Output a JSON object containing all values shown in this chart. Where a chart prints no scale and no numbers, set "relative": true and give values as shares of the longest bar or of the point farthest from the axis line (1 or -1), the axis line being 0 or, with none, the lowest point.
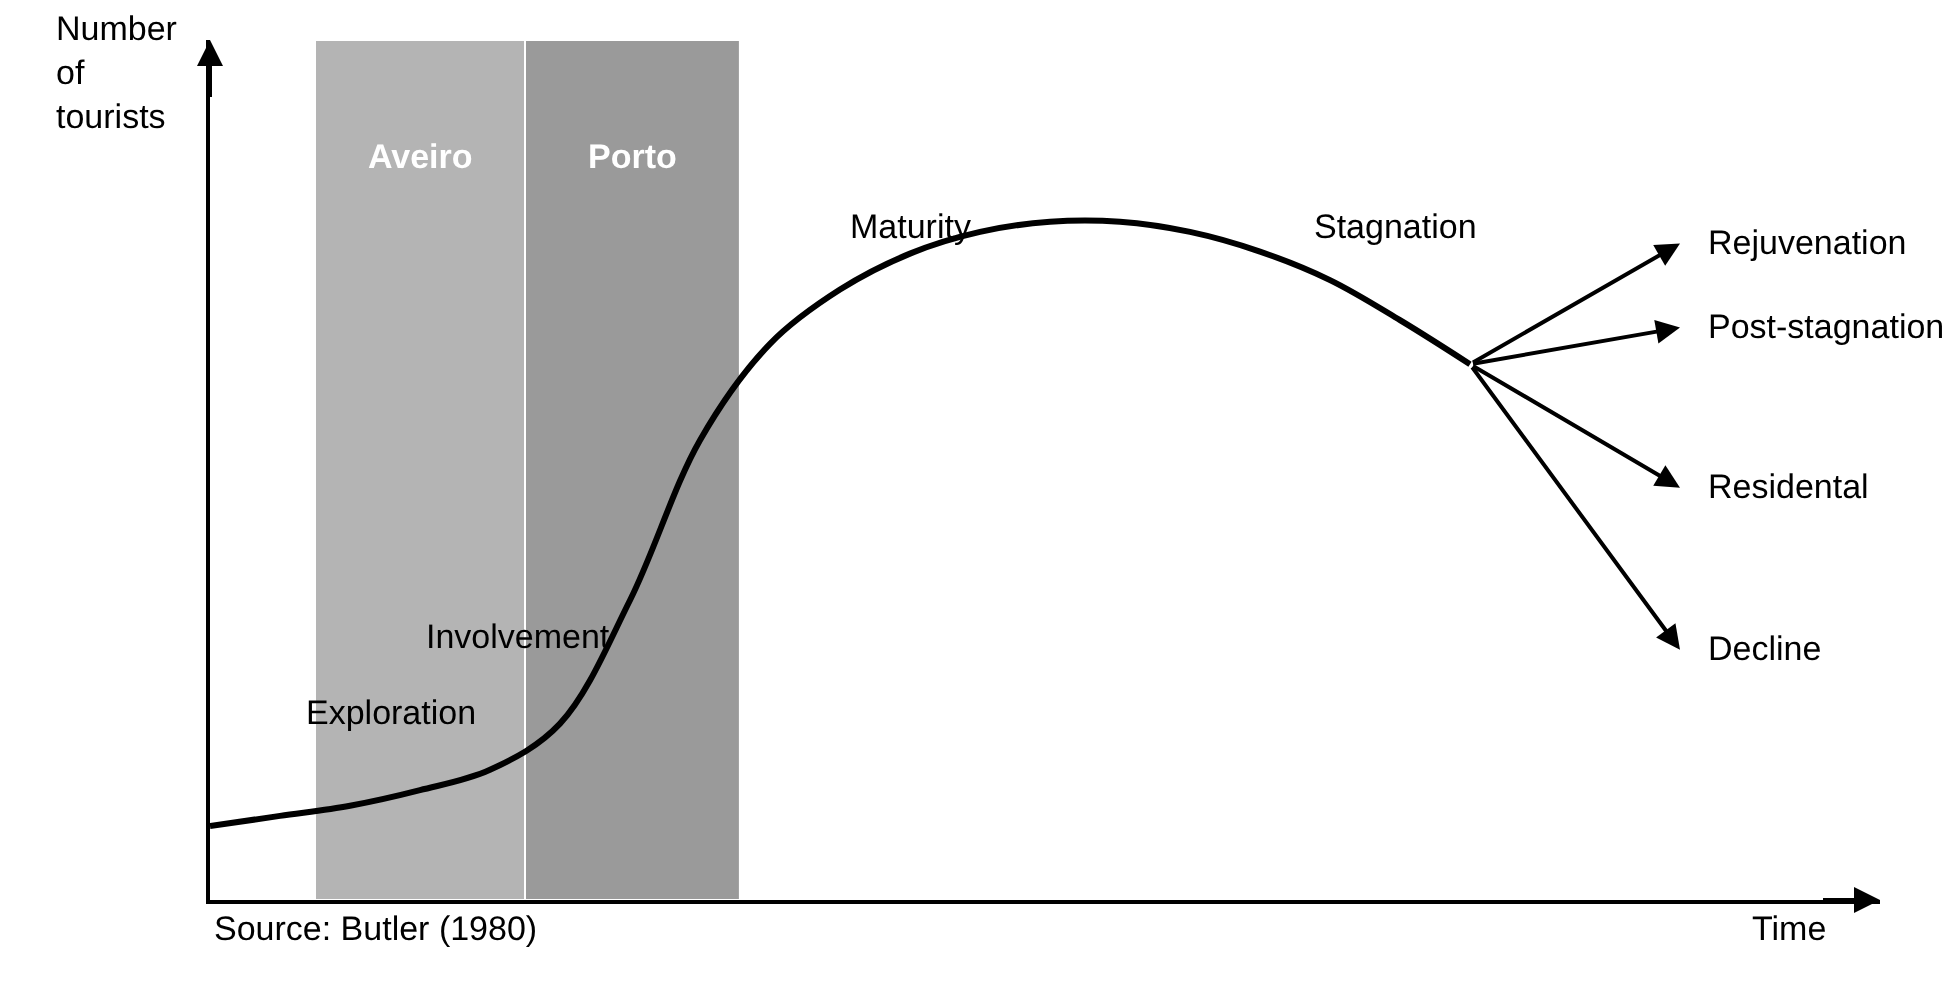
{
  "chart_data": {
    "type": "line",
    "relative": true,
    "xlabel": "Time",
    "ylabel": "Number of tourists",
    "categories": [
      null,
      null,
      null,
      null,
      null,
      null,
      null,
      null,
      null,
      null,
      null,
      null,
      null,
      null,
      null,
      null,
      null,
      null,
      null,
      null,
      null,
      null
    ],
    "series": [
      {
        "color": "#000000",
        "values": [
          0.109,
          0.124,
          0.139,
          0.162,
          0.192,
          0.26,
          0.442,
          0.678,
          0.82,
          0.9,
          0.953,
          0.985,
          1,
          1,
          0.985,
          0.956,
          0.914,
          0.855,
          0.79,
          null,
          null,
          null
        ]
      }
    ],
    "annotations": [
      "Exploration",
      "Involvement",
      "Maturity",
      "Stagnation",
      "Source: Butler (1980)",
      "Aveiro",
      "Porto",
      "Rejuvenation",
      "Post-stagnation",
      "Residental",
      "Decline"
    ],
    "grid": false
  }
}
